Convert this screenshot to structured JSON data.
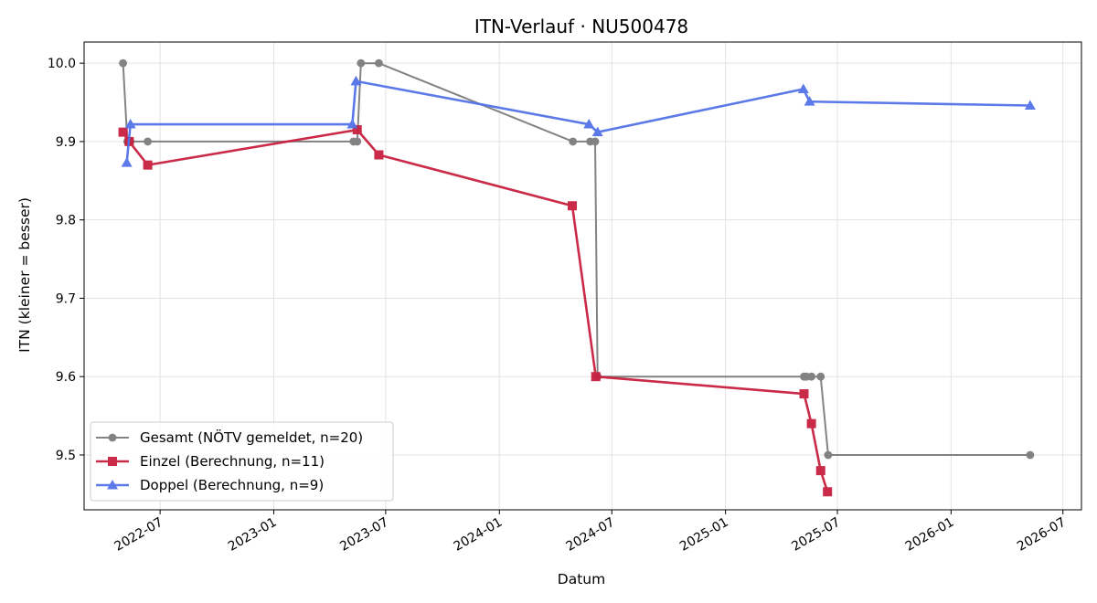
{
  "chart_data": {
    "type": "line",
    "title": "ITN-Verlauf · NU500478",
    "xlabel": "Datum",
    "ylabel": "ITN  (kleiner = besser)",
    "x_axis": {
      "type": "date",
      "range": [
        "2022-02-28",
        "2026-07-31"
      ],
      "ticks": [
        "2022-07",
        "2023-01",
        "2023-07",
        "2024-01",
        "2024-07",
        "2025-01",
        "2025-07",
        "2026-01",
        "2026-07"
      ]
    },
    "y_axis": {
      "range": [
        9.43,
        10.027
      ],
      "ticks": [
        "9.5",
        "9.6",
        "9.7",
        "9.8",
        "9.9",
        "10.0"
      ]
    },
    "grid": true,
    "legend": {
      "placement": "lower-left"
    },
    "series": [
      {
        "name": "Gesamt (NÖTV gemeldet, n=20)",
        "color": "#6e6e6e",
        "marker": "circle",
        "points": [
          [
            "2022-05-02",
            10.0
          ],
          [
            "2022-05-09",
            9.9
          ],
          [
            "2022-05-14",
            9.9
          ],
          [
            "2022-06-11",
            9.9
          ],
          [
            "2023-05-10",
            9.9
          ],
          [
            "2023-05-16",
            9.9
          ],
          [
            "2023-05-22",
            10.0
          ],
          [
            "2023-06-20",
            10.0
          ],
          [
            "2024-04-29",
            9.9
          ],
          [
            "2024-05-27",
            9.9
          ],
          [
            "2024-06-04",
            9.9
          ],
          [
            "2024-06-08",
            9.6
          ],
          [
            "2025-05-08",
            9.6
          ],
          [
            "2025-05-12",
            9.6
          ],
          [
            "2025-05-20",
            9.6
          ],
          [
            "2025-06-04",
            9.6
          ],
          [
            "2025-06-16",
            9.5
          ],
          [
            "2026-05-09",
            9.5
          ]
        ]
      },
      {
        "name": "Einzel (Berechnung, n=11)",
        "color": "#c8203f",
        "marker": "square",
        "points": [
          [
            "2022-05-02",
            9.912
          ],
          [
            "2022-05-12",
            9.9
          ],
          [
            "2022-06-11",
            9.87
          ],
          [
            "2023-05-16",
            9.915
          ],
          [
            "2023-06-20",
            9.883
          ],
          [
            "2024-04-28",
            9.818
          ],
          [
            "2024-06-05",
            9.6
          ],
          [
            "2025-05-08",
            9.578
          ],
          [
            "2025-05-20",
            9.54
          ],
          [
            "2025-06-04",
            9.48
          ],
          [
            "2025-06-15",
            9.453
          ]
        ]
      },
      {
        "name": "Doppel (Berechnung, n=9)",
        "color": "#5472e8",
        "marker": "triangle",
        "points": [
          [
            "2022-05-08",
            9.873
          ],
          [
            "2022-05-14",
            9.922
          ],
          [
            "2023-05-08",
            9.922
          ],
          [
            "2023-05-14",
            9.977
          ],
          [
            "2024-05-25",
            9.922
          ],
          [
            "2024-06-08",
            9.912
          ],
          [
            "2025-05-07",
            9.967
          ],
          [
            "2025-05-17",
            9.951
          ],
          [
            "2026-05-09",
            9.946
          ]
        ]
      }
    ]
  }
}
